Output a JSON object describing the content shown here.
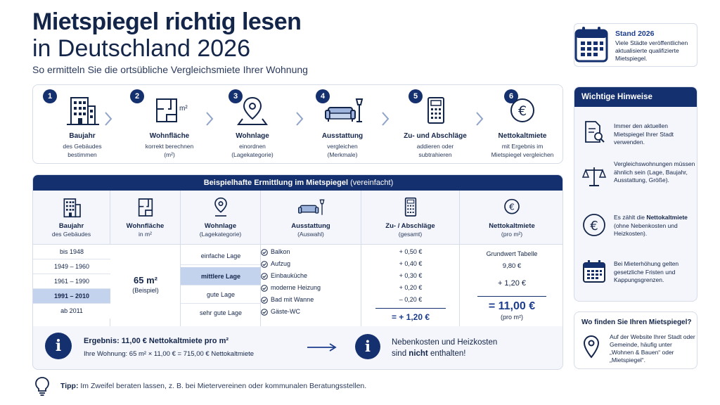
{
  "header": {
    "title_line1": "Mietspiegel richtig lesen",
    "title_line2": "in Deutschland 2026",
    "subtitle": "So ermitteln Sie die ortsübliche Vergleichsmiete Ihrer Wohnung"
  },
  "stand": {
    "title": "Stand 2026",
    "text": "Viele Städte veröffentlichen aktualisierte qualifizierte Mietspiegel."
  },
  "steps": [
    {
      "number": "1",
      "title": "Baujahr",
      "desc1": "des Gebäudes",
      "desc2": "bestimmen",
      "icon": "building-icon"
    },
    {
      "number": "2",
      "title": "Wohnfläche",
      "desc1": "korrekt berechnen",
      "desc2": "(m²)",
      "icon": "floorplan-icon",
      "icon_text": "m²"
    },
    {
      "number": "3",
      "title": "Wohnlage",
      "desc1": "einordnen",
      "desc2": "(Lagekategorie)",
      "icon": "location-pin-icon"
    },
    {
      "number": "4",
      "title": "Ausstattung",
      "desc1": "vergleichen",
      "desc2": "(Merkmale)",
      "icon": "sofa-lamp-icon"
    },
    {
      "number": "5",
      "title": "Zu- und Abschläge",
      "desc1": "addieren oder",
      "desc2": "subtrahieren",
      "icon": "calculator-icon"
    },
    {
      "number": "6",
      "title": "Nettokaltmiete",
      "desc1": "mit Ergebnis im",
      "desc2": "Mietspiegel vergleichen",
      "icon": "euro-icon"
    }
  ],
  "table": {
    "title_bold": "Beispielhafte Ermittlung im Mietspiegel",
    "title_rest": " (vereinfacht)",
    "columns": [
      {
        "title": "Baujahr",
        "sub": "des Gebäudes",
        "icon": "building-icon"
      },
      {
        "title": "Wohnfläche",
        "sub": "in m²",
        "icon": "floorplan-icon"
      },
      {
        "title": "Wohnlage",
        "sub": "(Lagekategorie)",
        "icon": "location-pin-icon"
      },
      {
        "title": "Ausstattung",
        "sub": "(Auswahl)",
        "icon": "sofa-lamp-icon"
      },
      {
        "title": "Zu- / Abschläge",
        "sub": "(gesamt)",
        "icon": "calculator-icon"
      },
      {
        "title": "Nettokaltmiete",
        "sub": "(pro m²)",
        "icon": "euro-icon"
      }
    ],
    "baujahr": [
      "bis 1948",
      "1949 – 1960",
      "1961 – 1990",
      "1991 – 2010",
      "ab 2011"
    ],
    "baujahr_selected": 3,
    "flaeche_value": "65 m²",
    "flaeche_note": "(Beispiel)",
    "lagen": [
      "einfache Lage",
      "mittlere Lage",
      "gute Lage",
      "sehr gute Lage"
    ],
    "lage_selected": 1,
    "ausstattung": [
      {
        "label": "Balkon",
        "value": "+ 0,50 €"
      },
      {
        "label": "Aufzug",
        "value": "+ 0,40 €"
      },
      {
        "label": "Einbauküche",
        "value": "+ 0,30 €"
      },
      {
        "label": "moderne Heizung",
        "value": "+ 0,20 €"
      },
      {
        "label": "Bad mit Wanne",
        "value": "– 0,20 €"
      },
      {
        "label": "Gäste-WC",
        "value": ""
      }
    ],
    "zu_total": "= + 1,20 €",
    "grundwert_label": "Grundwert Tabelle",
    "grundwert_value": "9,80 €",
    "plus_value": "+ 1,20 €",
    "result_value": "= 11,00 €",
    "result_unit": "(pro m²)"
  },
  "result": {
    "title": "Ergebnis: 11,00 € Nettokaltmiete pro m²",
    "text": "Ihre Wohnung: 65 m² × 11,00 € = 715,00 € Nettokaltmiete",
    "neben_line1": "Nebenkosten und Heizkosten",
    "neben_line2_pre": "sind ",
    "neben_line2_bold": "nicht",
    "neben_line2_post": " enthalten!"
  },
  "hinweise": {
    "title": "Wichtige Hinweise",
    "items": [
      {
        "icon": "document-search-icon",
        "text": "Immer den aktuellen Mietspiegel Ihrer Stadt verwenden."
      },
      {
        "icon": "scale-icon",
        "text": "Vergleichswohnungen müssen ähnlich sein (Lage, Baujahr, Ausstattung, Größe)."
      },
      {
        "icon": "euro-icon",
        "text_pre": "Es zählt die ",
        "text_bold": "Netto­kaltmiete",
        "text_post": " (ohne Nebenkosten und Heizkosten)."
      },
      {
        "icon": "calendar-icon",
        "text": "Bei Mieterhöhung gelten gesetzliche Fristen und Kappungsgrenzen."
      }
    ]
  },
  "wo": {
    "title": "Wo finden Sie Ihren Mietspiegel?",
    "text": "Auf der Website Ihrer Stadt oder Gemeinde, häufig unter „Wohnen & Bauen“ oder „Mietspiegel“."
  },
  "tip": {
    "label": "Tipp:",
    "text": " Im Zweifel beraten lassen, z. B. bei Mietervereinen oder kommunalen Beratungsstellen."
  },
  "colors": {
    "navy": "#15306e",
    "highlight": "#c3d3ee",
    "panel": "#f4f6fb"
  }
}
